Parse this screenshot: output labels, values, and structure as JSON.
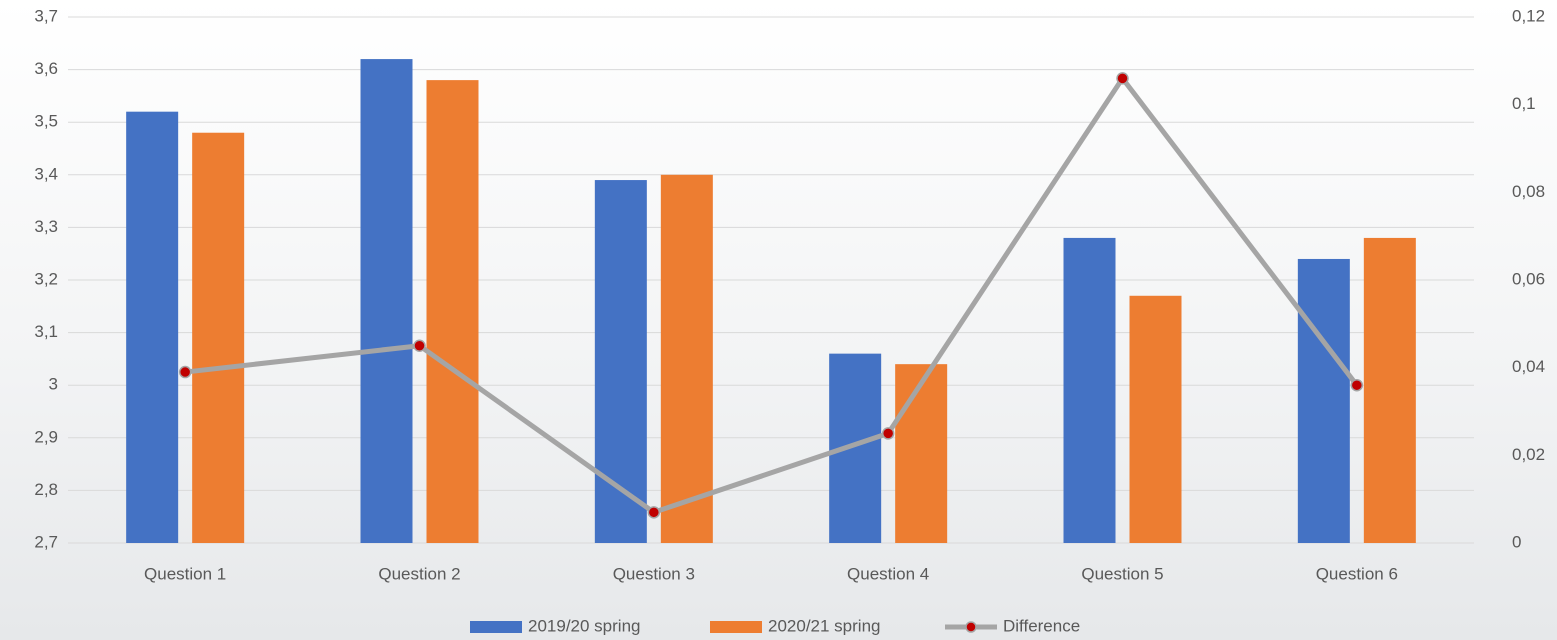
{
  "chart_data": {
    "type": "bar_line",
    "categories": [
      "Question 1",
      "Question 2",
      "Question 3",
      "Question 4",
      "Question 5",
      "Question 6"
    ],
    "series": [
      {
        "name": "2019/20 spring",
        "color": "#4472c4",
        "type": "bar",
        "values": [
          3.52,
          3.62,
          3.39,
          3.06,
          3.28,
          3.24
        ]
      },
      {
        "name": "2020/21 spring",
        "color": "#ed7d31",
        "type": "bar",
        "values": [
          3.48,
          3.58,
          3.4,
          3.04,
          3.17,
          3.28
        ]
      },
      {
        "name": "Difference",
        "color": "#a5a5a5",
        "marker_color": "#c00000",
        "type": "line",
        "axis": "y2",
        "values": [
          0.039,
          0.045,
          0.007,
          0.025,
          0.106,
          0.036
        ]
      }
    ],
    "ylim": [
      2.7,
      3.7
    ],
    "yticks": [
      {
        "value": 2.7,
        "label": "2,7"
      },
      {
        "value": 2.8,
        "label": "2,8"
      },
      {
        "value": 2.9,
        "label": "2,9"
      },
      3,
      {
        "value": 3.1,
        "label": "3,1"
      },
      {
        "value": 3.2,
        "label": "3,2"
      },
      {
        "value": 3.3,
        "label": "3,3"
      },
      {
        "value": 3.4,
        "label": "3,4"
      },
      {
        "value": 3.5,
        "label": "3,5"
      },
      {
        "value": 3.6,
        "label": "3,6"
      },
      {
        "value": 3.7,
        "label": "3,7"
      }
    ],
    "y2lim": [
      0,
      0.12
    ],
    "y2ticks": [
      0,
      {
        "value": 0.02,
        "label": "0,02"
      },
      {
        "value": 0.04,
        "label": "0,04"
      },
      {
        "value": 0.06,
        "label": "0,06"
      },
      {
        "value": 0.08,
        "label": "0,08"
      },
      {
        "value": 0.1,
        "label": "0,1"
      },
      {
        "value": 0.12,
        "label": "0,12"
      }
    ],
    "grid": true,
    "legend": "bottom"
  }
}
